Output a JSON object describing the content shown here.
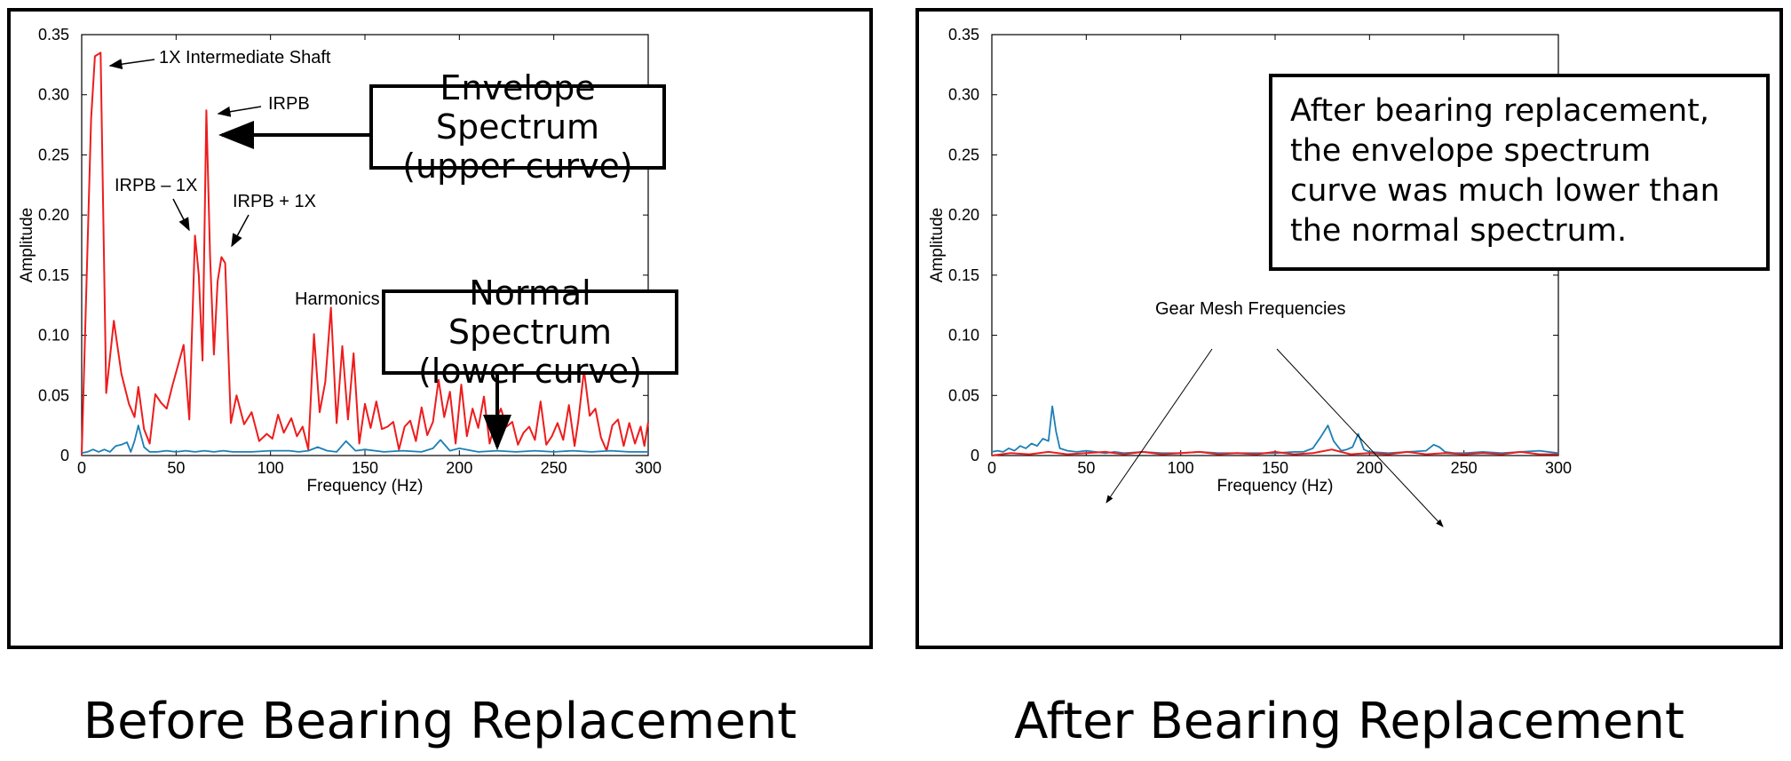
{
  "colors": {
    "envelope": "#ee1c1c",
    "normal": "#1c7fb6"
  },
  "chart_data": [
    {
      "type": "line",
      "caption": "Before Bearing Replacement",
      "xlabel": "Frequency (Hz)",
      "ylabel": "Amplitude",
      "xlim": [
        0,
        300
      ],
      "ylim": [
        0,
        0.35
      ],
      "xticks": [
        "0",
        "50",
        "100",
        "150",
        "200",
        "250",
        "300"
      ],
      "yticks": [
        "0",
        "0.05",
        "0.10",
        "0.15",
        "0.20",
        "0.25",
        "0.30",
        "0.35"
      ],
      "series": [
        {
          "color": "red",
          "x": [
            0,
            5,
            7,
            10,
            13,
            17,
            21,
            25,
            28,
            30,
            33,
            36,
            39,
            42,
            45,
            48,
            51,
            54,
            57,
            60,
            62,
            64,
            66,
            68,
            70,
            72,
            74,
            76,
            79,
            82,
            86,
            90,
            94,
            98,
            101,
            104,
            107,
            111,
            114,
            117,
            120,
            123,
            126,
            129,
            132,
            135,
            138,
            141,
            144,
            147,
            150,
            153,
            156,
            159,
            162,
            165,
            168,
            171,
            174,
            177,
            180,
            183,
            186,
            189,
            192,
            195,
            198,
            201,
            204,
            207,
            210,
            213,
            216,
            219,
            222,
            225,
            228,
            231,
            234,
            237,
            240,
            243,
            246,
            249,
            252,
            255,
            258,
            261,
            263,
            266,
            269,
            272,
            275,
            278,
            281,
            284,
            287,
            290,
            293,
            296,
            298,
            300
          ],
          "y": [
            0.0,
            0.28,
            0.332,
            0.335,
            0.052,
            0.112,
            0.068,
            0.043,
            0.032,
            0.057,
            0.022,
            0.01,
            0.051,
            0.044,
            0.039,
            0.058,
            0.075,
            0.092,
            0.03,
            0.183,
            0.15,
            0.079,
            0.287,
            0.165,
            0.084,
            0.145,
            0.165,
            0.16,
            0.027,
            0.05,
            0.026,
            0.036,
            0.012,
            0.018,
            0.014,
            0.034,
            0.019,
            0.031,
            0.016,
            0.024,
            0.005,
            0.101,
            0.036,
            0.061,
            0.123,
            0.027,
            0.091,
            0.03,
            0.085,
            0.01,
            0.043,
            0.023,
            0.045,
            0.022,
            0.024,
            0.028,
            0.005,
            0.024,
            0.029,
            0.012,
            0.04,
            0.017,
            0.028,
            0.063,
            0.032,
            0.053,
            0.01,
            0.059,
            0.016,
            0.039,
            0.023,
            0.049,
            0.01,
            0.028,
            0.039,
            0.024,
            0.028,
            0.009,
            0.019,
            0.024,
            0.013,
            0.045,
            0.009,
            0.016,
            0.027,
            0.013,
            0.042,
            0.008,
            0.029,
            0.071,
            0.033,
            0.039,
            0.015,
            0.004,
            0.025,
            0.03,
            0.008,
            0.027,
            0.01,
            0.024,
            0.008,
            0.028
          ]
        },
        {
          "color": "blue",
          "x": [
            0,
            3,
            6,
            9,
            12,
            15,
            18,
            21,
            24,
            26,
            28,
            30,
            33,
            36,
            40,
            45,
            50,
            55,
            60,
            65,
            70,
            75,
            80,
            90,
            100,
            110,
            115,
            120,
            125,
            130,
            135,
            140,
            145,
            150,
            160,
            170,
            180,
            186,
            190,
            195,
            200,
            210,
            220,
            230,
            240,
            250,
            260,
            270,
            280,
            290,
            300
          ],
          "y": [
            0.002,
            0.003,
            0.005,
            0.003,
            0.005,
            0.003,
            0.008,
            0.009,
            0.011,
            0.003,
            0.012,
            0.025,
            0.007,
            0.003,
            0.003,
            0.004,
            0.003,
            0.004,
            0.003,
            0.004,
            0.003,
            0.004,
            0.003,
            0.003,
            0.004,
            0.004,
            0.003,
            0.004,
            0.007,
            0.004,
            0.003,
            0.012,
            0.004,
            0.005,
            0.003,
            0.004,
            0.003,
            0.006,
            0.013,
            0.004,
            0.006,
            0.003,
            0.004,
            0.003,
            0.004,
            0.003,
            0.004,
            0.003,
            0.004,
            0.003,
            0.003
          ]
        }
      ],
      "annotations": {
        "shaft": "1X Intermediate Shaft",
        "irpb": "IRPB",
        "irpb_minus": "IRPB – 1X",
        "irpb_plus": "IRPB + 1X",
        "harmonics": "Harmonics"
      },
      "callouts": {
        "envelope_line1": "Envelope Spectrum",
        "envelope_line2": "(upper curve)",
        "normal_line1": "Normal Spectrum",
        "normal_line2": "(lower curve)"
      }
    },
    {
      "type": "line",
      "caption": "After Bearing Replacement",
      "xlabel": "Frequency (Hz)",
      "ylabel": "Amplitude",
      "xlim": [
        0,
        300
      ],
      "ylim": [
        0,
        0.35
      ],
      "xticks": [
        "0",
        "50",
        "100",
        "150",
        "200",
        "250",
        "300"
      ],
      "yticks": [
        "0",
        "0.05",
        "0.10",
        "0.15",
        "0.20",
        "0.25",
        "0.30",
        "0.35"
      ],
      "series": [
        {
          "color": "blue",
          "x": [
            0,
            3,
            6,
            9,
            12,
            15,
            18,
            21,
            24,
            27,
            30,
            32,
            34,
            36,
            40,
            45,
            50,
            55,
            60,
            65,
            70,
            80,
            90,
            100,
            110,
            120,
            130,
            140,
            150,
            160,
            165,
            170,
            174,
            178,
            181,
            185,
            188,
            191,
            194,
            197,
            200,
            210,
            220,
            230,
            234,
            237,
            240,
            245,
            250,
            260,
            270,
            280,
            290,
            300
          ],
          "y": [
            0.003,
            0.004,
            0.003,
            0.006,
            0.004,
            0.008,
            0.006,
            0.01,
            0.008,
            0.014,
            0.012,
            0.041,
            0.02,
            0.006,
            0.004,
            0.003,
            0.004,
            0.003,
            0.002,
            0.003,
            0.002,
            0.003,
            0.002,
            0.002,
            0.003,
            0.002,
            0.002,
            0.002,
            0.002,
            0.003,
            0.003,
            0.006,
            0.015,
            0.025,
            0.012,
            0.004,
            0.005,
            0.007,
            0.018,
            0.005,
            0.003,
            0.002,
            0.003,
            0.004,
            0.009,
            0.007,
            0.003,
            0.002,
            0.002,
            0.003,
            0.002,
            0.003,
            0.004,
            0.002
          ]
        },
        {
          "color": "red",
          "x": [
            0,
            10,
            20,
            30,
            40,
            50,
            60,
            70,
            80,
            90,
            100,
            110,
            120,
            130,
            140,
            150,
            160,
            170,
            180,
            190,
            200,
            210,
            220,
            230,
            240,
            250,
            260,
            270,
            280,
            290,
            300
          ],
          "y": [
            0.0,
            0.002,
            0.001,
            0.003,
            0.001,
            0.002,
            0.003,
            0.001,
            0.003,
            0.001,
            0.002,
            0.003,
            0.001,
            0.002,
            0.001,
            0.003,
            0.001,
            0.002,
            0.005,
            0.001,
            0.002,
            0.001,
            0.003,
            0.001,
            0.002,
            0.001,
            0.002,
            0.001,
            0.003,
            0.001,
            0.001
          ]
        }
      ],
      "annotations": {
        "gear": "Gear Mesh Frequencies"
      },
      "callouts": {
        "after_line1": "After bearing replacement,",
        "after_line2": "the envelope spectrum",
        "after_line3": "curve was much lower than",
        "after_line4": "the normal spectrum."
      }
    }
  ]
}
